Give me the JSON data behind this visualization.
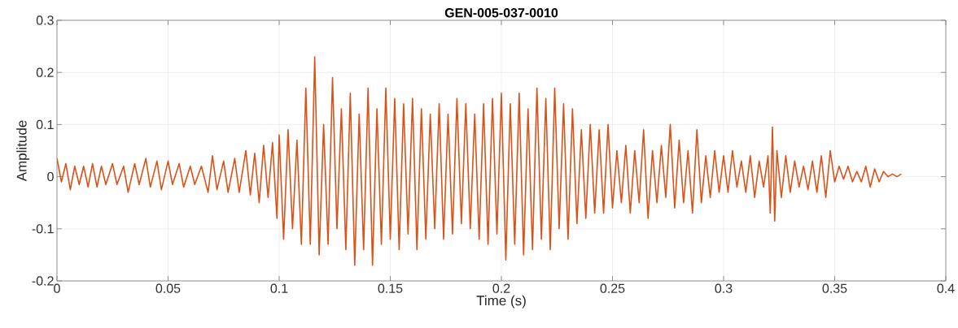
{
  "chart_data": {
    "type": "line",
    "title": "**GEN-005-037-0010**",
    "xlabel": "Time (s)",
    "ylabel": "Amplitude",
    "xlim": [
      0,
      0.4
    ],
    "ylim": [
      -0.2,
      0.3
    ],
    "xticks": [
      0,
      0.05,
      0.1,
      0.15,
      0.2,
      0.25,
      0.3,
      0.35,
      0.4
    ],
    "yticks": [
      -0.2,
      -0.1,
      0,
      0.1,
      0.2,
      0.3
    ],
    "grid": true,
    "x": [
      0,
      0.002,
      0.004,
      0.006,
      0.008,
      0.01,
      0.012,
      0.014,
      0.016,
      0.018,
      0.02,
      0.022,
      0.025,
      0.027,
      0.03,
      0.032,
      0.035,
      0.037,
      0.04,
      0.042,
      0.045,
      0.047,
      0.05,
      0.052,
      0.055,
      0.057,
      0.06,
      0.062,
      0.065,
      0.068,
      0.07,
      0.072,
      0.075,
      0.077,
      0.08,
      0.082,
      0.085,
      0.087,
      0.089,
      0.091,
      0.093,
      0.095,
      0.097,
      0.099,
      0.1,
      0.102,
      0.104,
      0.106,
      0.108,
      0.11,
      0.112,
      0.114,
      0.116,
      0.118,
      0.12,
      0.122,
      0.124,
      0.126,
      0.128,
      0.13,
      0.132,
      0.134,
      0.136,
      0.138,
      0.14,
      0.142,
      0.144,
      0.146,
      0.148,
      0.15,
      0.152,
      0.154,
      0.156,
      0.158,
      0.16,
      0.162,
      0.164,
      0.166,
      0.168,
      0.17,
      0.172,
      0.174,
      0.176,
      0.178,
      0.18,
      0.182,
      0.184,
      0.186,
      0.188,
      0.19,
      0.192,
      0.194,
      0.196,
      0.198,
      0.2,
      0.202,
      0.204,
      0.206,
      0.208,
      0.21,
      0.212,
      0.214,
      0.216,
      0.218,
      0.22,
      0.222,
      0.224,
      0.226,
      0.228,
      0.23,
      0.232,
      0.234,
      0.236,
      0.238,
      0.24,
      0.242,
      0.244,
      0.246,
      0.248,
      0.25,
      0.252,
      0.254,
      0.256,
      0.258,
      0.26,
      0.262,
      0.264,
      0.266,
      0.268,
      0.27,
      0.272,
      0.274,
      0.276,
      0.278,
      0.28,
      0.282,
      0.284,
      0.286,
      0.288,
      0.29,
      0.292,
      0.294,
      0.296,
      0.298,
      0.3,
      0.302,
      0.304,
      0.306,
      0.308,
      0.31,
      0.312,
      0.314,
      0.316,
      0.318,
      0.32,
      0.321,
      0.322,
      0.323,
      0.324,
      0.326,
      0.328,
      0.33,
      0.332,
      0.334,
      0.336,
      0.338,
      0.34,
      0.342,
      0.344,
      0.346,
      0.348,
      0.35,
      0.352,
      0.354,
      0.356,
      0.358,
      0.36,
      0.362,
      0.364,
      0.366,
      0.368,
      0.37,
      0.372,
      0.374,
      0.376,
      0.378,
      0.38
    ],
    "series": [
      {
        "color": "#d95319",
        "values": [
          0.035,
          -0.01,
          0.025,
          -0.025,
          0.02,
          -0.015,
          0.02,
          -0.02,
          0.025,
          -0.02,
          0.02,
          -0.015,
          0.025,
          -0.015,
          0.02,
          -0.03,
          0.025,
          -0.015,
          0.035,
          -0.02,
          0.03,
          -0.025,
          0.03,
          -0.015,
          0.025,
          -0.02,
          0.02,
          -0.015,
          0.02,
          -0.03,
          0.04,
          -0.025,
          0.03,
          -0.03,
          0.035,
          -0.03,
          0.05,
          -0.035,
          0.045,
          -0.05,
          0.06,
          -0.04,
          0.065,
          -0.08,
          0.08,
          -0.12,
          0.09,
          -0.1,
          0.07,
          -0.13,
          0.17,
          -0.13,
          0.23,
          -0.15,
          0.1,
          -0.13,
          0.19,
          -0.1,
          0.13,
          -0.14,
          0.16,
          -0.17,
          0.12,
          -0.14,
          0.17,
          -0.17,
          0.13,
          -0.13,
          0.17,
          -0.12,
          0.15,
          -0.14,
          0.14,
          -0.11,
          0.15,
          -0.14,
          0.13,
          -0.12,
          0.12,
          -0.1,
          0.14,
          -0.12,
          0.12,
          -0.11,
          0.15,
          -0.09,
          0.14,
          -0.1,
          0.12,
          -0.12,
          0.14,
          -0.13,
          0.15,
          -0.11,
          0.16,
          -0.16,
          0.14,
          -0.13,
          0.16,
          -0.15,
          0.13,
          -0.14,
          0.17,
          -0.12,
          0.15,
          -0.14,
          0.17,
          -0.1,
          0.14,
          -0.12,
          0.13,
          -0.09,
          0.09,
          -0.08,
          0.1,
          -0.07,
          0.09,
          -0.07,
          0.1,
          -0.06,
          0.05,
          -0.05,
          0.06,
          -0.07,
          0.05,
          -0.05,
          0.09,
          -0.08,
          0.05,
          -0.05,
          0.06,
          -0.04,
          0.1,
          -0.06,
          0.07,
          -0.05,
          0.05,
          -0.07,
          0.09,
          -0.05,
          0.04,
          -0.04,
          0.05,
          -0.03,
          0.04,
          -0.03,
          0.05,
          -0.02,
          0.03,
          -0.03,
          0.04,
          -0.04,
          0.03,
          -0.02,
          0.04,
          -0.07,
          0.095,
          -0.085,
          0.05,
          -0.04,
          0.04,
          -0.03,
          0.03,
          -0.02,
          0.02,
          -0.025,
          0.03,
          -0.03,
          0.04,
          -0.04,
          0.05,
          -0.01,
          0.02,
          -0.005,
          0.02,
          -0.01,
          0.01,
          -0.01,
          0.02,
          -0.02,
          0.015,
          -0.01,
          0.01,
          0.0,
          0.005,
          0.0,
          0.005
        ]
      }
    ]
  }
}
